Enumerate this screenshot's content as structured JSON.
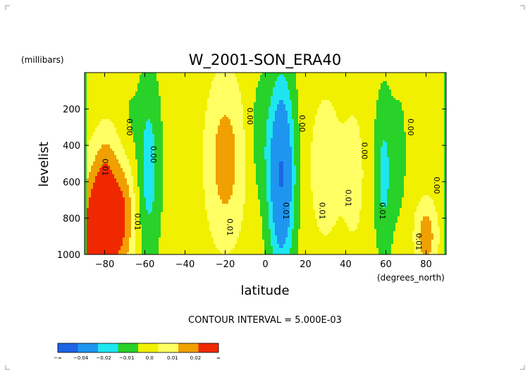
{
  "chart_data": {
    "type": "heatmap",
    "title": "W_2001-SON_ERA40",
    "xlabel": "latitude",
    "xunits": "(degrees_north)",
    "ylabel": "levelist",
    "yunits": "(millibars)",
    "xlim": [
      -90,
      90
    ],
    "ylim": [
      1000,
      0
    ],
    "x_ticks": [
      -80,
      -60,
      -40,
      -20,
      0,
      20,
      40,
      60,
      80
    ],
    "y_ticks": [
      200,
      400,
      600,
      800,
      1000
    ],
    "contour_interval_text": "CONTOUR INTERVAL = 5.000E-03",
    "colorbar": {
      "colors": [
        "#1e64e6",
        "#1e96f0",
        "#1ee6f0",
        "#28d228",
        "#f0f000",
        "#ffff64",
        "#f0a000",
        "#f02800"
      ],
      "labels": [
        "-∞",
        "-0.04",
        "-0.02",
        "-0.01",
        "0.0",
        "0.01",
        "0.02",
        "∞"
      ]
    },
    "contour_labels": [
      {
        "text": "0.00",
        "lat": -69,
        "lev": 300
      },
      {
        "text": "0.01",
        "lat": -81,
        "lev": 520
      },
      {
        "text": "0.00",
        "lat": -57,
        "lev": 450
      },
      {
        "text": "0.01",
        "lat": -65,
        "lev": 820
      },
      {
        "text": "0.00",
        "lat": -9,
        "lev": 240
      },
      {
        "text": "0.01",
        "lat": -19,
        "lev": 850
      },
      {
        "text": "0.00",
        "lat": 17,
        "lev": 280
      },
      {
        "text": "0.01",
        "lat": 9,
        "lev": 760
      },
      {
        "text": "0.01",
        "lat": 27,
        "lev": 760
      },
      {
        "text": "0.01",
        "lat": 40,
        "lev": 690
      },
      {
        "text": "0.00",
        "lat": 48,
        "lev": 430
      },
      {
        "text": "0.01",
        "lat": 57,
        "lev": 760
      },
      {
        "text": "0.00",
        "lat": 71,
        "lev": 300
      },
      {
        "text": "0.01",
        "lat": 75,
        "lev": 930
      },
      {
        "text": "0.00",
        "lat": 84,
        "lev": 620
      }
    ],
    "field": {
      "pole_fill": "#28d228",
      "features": [
        {
          "lat": -20,
          "lev": 480,
          "sigma_lat": 7,
          "sigma_lev": 330,
          "value": 0.021
        },
        {
          "lat": 30,
          "lev": 520,
          "sigma_lat": 6,
          "sigma_lev": 300,
          "value": 0.013
        },
        {
          "lat": 44,
          "lev": 560,
          "sigma_lat": 4,
          "sigma_lev": 270,
          "value": 0.011
        },
        {
          "lat": -82,
          "lev": 880,
          "sigma_lat": 7,
          "sigma_lev": 260,
          "value": 0.045
        },
        {
          "lat": -70,
          "lev": 760,
          "sigma_lat": 4,
          "sigma_lev": 220,
          "value": 0.018
        },
        {
          "lat": -79,
          "lev": 520,
          "sigma_lat": 4,
          "sigma_lev": 180,
          "value": 0.011
        },
        {
          "lat": 80,
          "lev": 900,
          "sigma_lat": 4,
          "sigma_lev": 140,
          "value": 0.022
        },
        {
          "lat": 8,
          "lev": 560,
          "sigma_lat": 4.5,
          "sigma_lev": 360,
          "value": -0.045
        },
        {
          "lat": -58,
          "lev": 520,
          "sigma_lat": 4,
          "sigma_lev": 340,
          "value": -0.019
        },
        {
          "lat": 59,
          "lev": 560,
          "sigma_lat": 3.2,
          "sigma_lev": 300,
          "value": -0.017
        },
        {
          "lat": -3,
          "lev": 350,
          "sigma_lat": 4,
          "sigma_lev": 250,
          "value": -0.008
        },
        {
          "lat": 67,
          "lev": 450,
          "sigma_lat": 3,
          "sigma_lev": 300,
          "value": -0.006
        },
        {
          "lat": -68,
          "lev": 300,
          "sigma_lat": 3,
          "sigma_lev": 200,
          "value": -0.005
        }
      ]
    }
  }
}
